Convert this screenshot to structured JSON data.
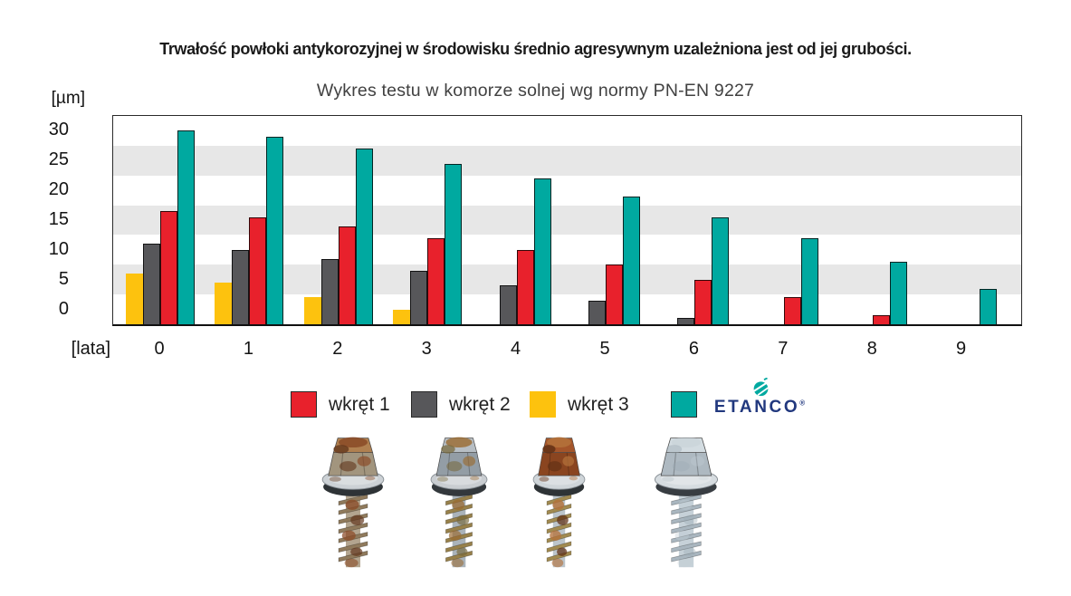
{
  "title": "Trwałość powłoki antykorozyjnej w środowisku średnio agresywnym uzależniona jest od jej grubości.",
  "subtitle": "Wykres testu w komorze solnej wg normy PN-EN 9227",
  "chart_data": {
    "type": "bar",
    "title": "Trwałość powłoki antykorozyjnej w środowisku średnio agresywnym uzależniona jest od jej grubości.",
    "subtitle": "Wykres testu w komorze solnej wg normy PN-EN 9227",
    "y_unit": "[µm]",
    "x_unit": "[lata]",
    "categories": [
      "0",
      "1",
      "2",
      "3",
      "4",
      "5",
      "6",
      "7",
      "8",
      "9"
    ],
    "yticks": [
      30,
      25,
      20,
      15,
      10,
      5,
      0
    ],
    "ylim": [
      0,
      35
    ],
    "grid": "horizontal-bands",
    "stripe_color": "#e7e7e7",
    "legend_position": "bottom",
    "series": [
      {
        "name": "wkręt 1",
        "color": "#e8212c",
        "values": [
          19,
          18,
          16.5,
          14.5,
          12.5,
          10,
          7.5,
          4.5,
          1.5,
          0
        ]
      },
      {
        "name": "wkręt 2",
        "color": "#57575a",
        "values": [
          13.5,
          12.5,
          11,
          9,
          6.5,
          4,
          1,
          0,
          0,
          0
        ]
      },
      {
        "name": "wkręt 3",
        "color": "#fdc20e",
        "values": [
          8.5,
          7,
          4.5,
          2.5,
          0,
          0,
          0,
          0,
          0,
          0
        ]
      },
      {
        "name": "ETANCO",
        "color": "#00a9a0",
        "values": [
          32.5,
          31.5,
          29.5,
          27,
          24.5,
          21.5,
          18,
          14.5,
          10.5,
          6
        ]
      }
    ],
    "draw_order": [
      "wkręt 3",
      "wkręt 2",
      "wkręt 1",
      "ETANCO"
    ]
  },
  "legend": {
    "items": [
      {
        "label": "wkręt 1",
        "color": "#e8212c"
      },
      {
        "label": "wkręt 2",
        "color": "#57575a"
      },
      {
        "label": "wkręt 3",
        "color": "#fdc20e"
      },
      {
        "label": "",
        "color": "#00a9a0",
        "brand": true
      }
    ],
    "brand": {
      "text": "ETANCO",
      "mark": "®",
      "text_color": "#21387e",
      "icon_color": "#00a9a0"
    }
  },
  "images": [
    {
      "name": "screw-photo-1",
      "description": "heavily rusted hex-head screw with washer",
      "palette": {
        "head_top": "#b08050",
        "head_side": "#a2957e",
        "washer": "#ccd1d5",
        "rubber": "#2e3336",
        "rod": "#b3a58f",
        "thread": "#8f7a5c",
        "rust1": "#8a4a26",
        "rust2": "#60341a",
        "rust_opacity": 0.85
      }
    },
    {
      "name": "screw-photo-2",
      "description": "corroded screw with rust and patina patches",
      "palette": {
        "head_top": "#b7bec4",
        "head_side": "#939da5",
        "washer": "#c9cdd1",
        "rubber": "#33383c",
        "rod": "#aab3ba",
        "thread": "#97804a",
        "rust1": "#9a6a30",
        "rust2": "#77683a",
        "rust_opacity": 0.8
      }
    },
    {
      "name": "screw-photo-3",
      "description": "screw with heavily rusted copper-brown head",
      "palette": {
        "head_top": "#a4552a",
        "head_side": "#8a4520",
        "washer": "#cfd5d9",
        "rubber": "#2e3336",
        "rod": "#bcc5cb",
        "thread": "#a18a50",
        "rust1": "#b4713a",
        "rust2": "#5f2f14",
        "rust_opacity": 0.9
      }
    },
    {
      "name": "screw-photo-4",
      "description": "clean galvanized silver screw",
      "palette": {
        "head_top": "#d3dce1",
        "head_side": "#aeb9c1",
        "washer": "#d6dce0",
        "rubber": "#383d42",
        "rod": "#c6d1d8",
        "thread": "#a9b6bf",
        "rust1": "#c3ced5",
        "rust2": "#98a8b2",
        "rust_opacity": 0.45
      }
    }
  ]
}
